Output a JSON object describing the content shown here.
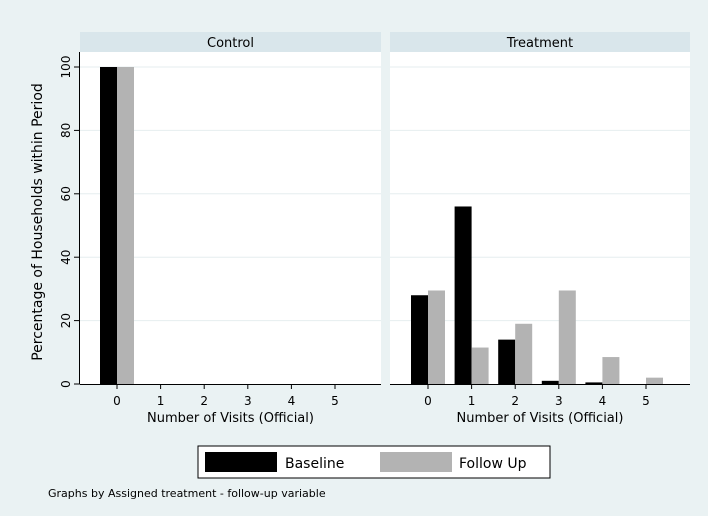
{
  "chart_data": {
    "type": "bar",
    "ylabel": "Percentage of Households within Period",
    "xlabel": "Number of Visits (Official)",
    "ylim": [
      0,
      100
    ],
    "y_ticks": [
      "0",
      "20",
      "40",
      "60",
      "80",
      "100"
    ],
    "categories": [
      "0",
      "1",
      "2",
      "3",
      "4",
      "5"
    ],
    "grid": "horizontal",
    "legend_position": "bottom",
    "note": "Graphs by Assigned treatment - follow-up variable",
    "colors": {
      "baseline": "#000000",
      "followup": "#b3b3b3",
      "outer_bg": "#eaf2f3",
      "strip_bg": "#d9e6eb"
    },
    "panels": [
      {
        "title": "Control",
        "series": [
          {
            "name": "Baseline",
            "values": [
              100,
              0,
              0,
              0,
              0,
              0
            ]
          },
          {
            "name": "Follow Up",
            "values": [
              100,
              0,
              0,
              0,
              0,
              0
            ]
          }
        ]
      },
      {
        "title": "Treatment",
        "series": [
          {
            "name": "Baseline",
            "values": [
              28,
              56,
              14,
              1,
              0.5,
              0
            ]
          },
          {
            "name": "Follow Up",
            "values": [
              29.5,
              11.5,
              19,
              29.5,
              8.5,
              2
            ]
          }
        ]
      }
    ]
  }
}
